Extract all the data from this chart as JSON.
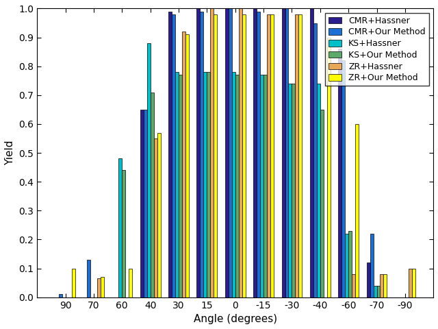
{
  "angles": [
    90,
    70,
    60,
    40,
    30,
    15,
    0,
    -15,
    -30,
    -40,
    -60,
    -70,
    -90
  ],
  "series": {
    "CMR+Hassner": [
      0.0,
      0.0,
      0.0,
      0.65,
      0.99,
      1.0,
      1.0,
      1.0,
      1.0,
      1.0,
      0.86,
      0.12,
      0.0
    ],
    "CMR+Our Method": [
      0.01,
      0.13,
      0.0,
      0.65,
      0.98,
      0.99,
      1.0,
      0.99,
      1.0,
      0.95,
      0.82,
      0.22,
      0.0
    ],
    "KS+Hassner": [
      0.0,
      0.0,
      0.48,
      0.88,
      0.78,
      0.78,
      0.78,
      0.77,
      0.74,
      0.74,
      0.22,
      0.04,
      0.0
    ],
    "KS+Our Method": [
      0.0,
      0.0,
      0.44,
      0.71,
      0.77,
      0.78,
      0.77,
      0.77,
      0.74,
      0.65,
      0.23,
      0.04,
      0.0
    ],
    "ZR+Hassner": [
      0.0,
      0.065,
      0.0,
      0.55,
      0.92,
      1.0,
      1.0,
      0.98,
      0.98,
      0.0,
      0.08,
      0.08,
      0.1
    ],
    "ZR+Our Method": [
      0.1,
      0.07,
      0.1,
      0.57,
      0.91,
      0.98,
      0.98,
      0.98,
      0.98,
      0.9,
      0.6,
      0.08,
      0.1
    ]
  },
  "colors": {
    "CMR+Hassner": "#2B1D8E",
    "CMR+Our Method": "#1B6FD4",
    "KS+Hassner": "#00BFC8",
    "KS+Our Method": "#5BAA6A",
    "ZR+Hassner": "#E8A857",
    "ZR+Our Method": "#FFFF00"
  },
  "xlabel": "Angle (degrees)",
  "ylabel": "Yield",
  "ylim": [
    0,
    1
  ],
  "yticks": [
    0.0,
    0.1,
    0.2,
    0.3,
    0.4,
    0.5,
    0.6,
    0.7,
    0.8,
    0.9,
    1.0
  ],
  "bar_width": 0.12,
  "figsize": [
    6.4,
    4.8
  ],
  "dpi": 100,
  "legend_fontsize": 9,
  "axis_fontsize": 11,
  "tick_fontsize": 10
}
